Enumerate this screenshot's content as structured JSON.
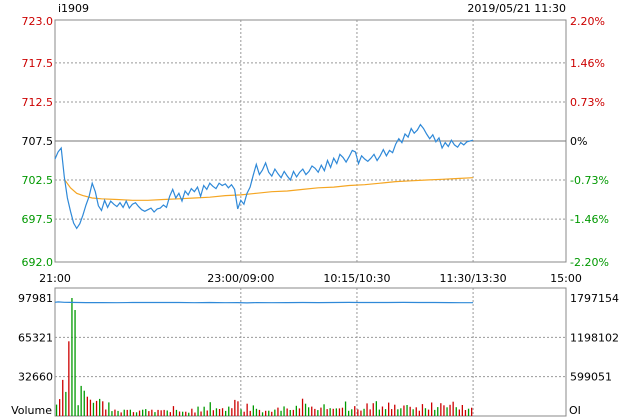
{
  "header": {
    "symbol": "i1909",
    "datetime": "2019/05/21 11:30"
  },
  "colors": {
    "price_line": "#2f89d8",
    "avg_line": "#f5a623",
    "up": "#cc0000",
    "down": "#009900",
    "neutral": "#000000",
    "grid": "#999999",
    "oi_line": "#2f89d8"
  },
  "chart_data": [
    {
      "type": "line",
      "panel": "price",
      "y_ticks_left": [
        "723.0",
        "717.5",
        "712.5",
        "707.5",
        "702.5",
        "697.5",
        "692.0"
      ],
      "y_ticks_right": [
        "2.20%",
        "1.46%",
        "0.73%",
        "0%",
        "-0.73%",
        "-1.46%",
        "-2.20%"
      ],
      "y_values": [
        723.0,
        717.5,
        712.5,
        707.5,
        702.5,
        697.5,
        692.0
      ],
      "ylim": [
        692.0,
        723.0
      ],
      "base_price": 707.5,
      "x_ticks": [
        "21:00",
        "23:00/09:00",
        "10:15/10:30",
        "11:30/13:30",
        "15:00"
      ],
      "xlim": [
        0,
        330
      ],
      "x_tick_positions": [
        0,
        120,
        195,
        270,
        330
      ],
      "last_x": 270,
      "series": [
        {
          "key": "price",
          "points": [
            [
              0,
              705.2
            ],
            [
              2,
              706.1
            ],
            [
              4,
              706.6
            ],
            [
              6,
              702.9
            ],
            [
              8,
              700.2
            ],
            [
              10,
              698.5
            ],
            [
              12,
              697.0
            ],
            [
              14,
              696.3
            ],
            [
              16,
              696.9
            ],
            [
              18,
              698.0
            ],
            [
              20,
              699.3
            ],
            [
              22,
              700.4
            ],
            [
              24,
              702.1
            ],
            [
              26,
              701.0
            ],
            [
              28,
              699.2
            ],
            [
              30,
              698.6
            ],
            [
              32,
              699.9
            ],
            [
              34,
              699.0
            ],
            [
              36,
              699.8
            ],
            [
              38,
              699.4
            ],
            [
              40,
              699.1
            ],
            [
              42,
              699.6
            ],
            [
              44,
              699.0
            ],
            [
              46,
              699.8
            ],
            [
              48,
              698.9
            ],
            [
              50,
              699.4
            ],
            [
              52,
              699.6
            ],
            [
              54,
              699.1
            ],
            [
              56,
              698.7
            ],
            [
              58,
              698.5
            ],
            [
              60,
              698.7
            ],
            [
              62,
              698.9
            ],
            [
              64,
              698.4
            ],
            [
              66,
              698.8
            ],
            [
              68,
              698.9
            ],
            [
              70,
              699.3
            ],
            [
              72,
              699.0
            ],
            [
              74,
              700.4
            ],
            [
              76,
              701.3
            ],
            [
              78,
              700.2
            ],
            [
              80,
              700.8
            ],
            [
              82,
              699.8
            ],
            [
              84,
              701.1
            ],
            [
              86,
              700.6
            ],
            [
              88,
              701.4
            ],
            [
              90,
              701.0
            ],
            [
              92,
              701.6
            ],
            [
              94,
              700.4
            ],
            [
              96,
              701.8
            ],
            [
              98,
              701.3
            ],
            [
              100,
              702.1
            ],
            [
              102,
              701.7
            ],
            [
              104,
              701.4
            ],
            [
              106,
              702.1
            ],
            [
              108,
              701.8
            ],
            [
              110,
              702.0
            ],
            [
              112,
              701.5
            ],
            [
              114,
              701.9
            ],
            [
              116,
              701.3
            ],
            [
              118,
              698.8
            ],
            [
              120,
              699.9
            ],
            [
              122,
              699.4
            ],
            [
              124,
              700.8
            ],
            [
              126,
              701.6
            ],
            [
              128,
              703.1
            ],
            [
              130,
              704.5
            ],
            [
              132,
              703.2
            ],
            [
              134,
              703.8
            ],
            [
              136,
              704.7
            ],
            [
              138,
              703.5
            ],
            [
              140,
              703.0
            ],
            [
              142,
              703.9
            ],
            [
              144,
              703.3
            ],
            [
              146,
              702.8
            ],
            [
              148,
              703.6
            ],
            [
              150,
              703.0
            ],
            [
              152,
              702.5
            ],
            [
              154,
              703.6
            ],
            [
              156,
              702.9
            ],
            [
              158,
              703.5
            ],
            [
              160,
              703.9
            ],
            [
              162,
              703.2
            ],
            [
              164,
              703.6
            ],
            [
              166,
              704.3
            ],
            [
              168,
              704.0
            ],
            [
              170,
              703.5
            ],
            [
              172,
              704.4
            ],
            [
              174,
              703.7
            ],
            [
              176,
              705.0
            ],
            [
              178,
              704.1
            ],
            [
              180,
              705.3
            ],
            [
              182,
              704.6
            ],
            [
              184,
              705.8
            ],
            [
              186,
              705.4
            ],
            [
              188,
              704.8
            ],
            [
              190,
              705.5
            ],
            [
              192,
              706.3
            ],
            [
              194,
              706.1
            ],
            [
              196,
              704.6
            ],
            [
              198,
              705.6
            ],
            [
              200,
              705.2
            ],
            [
              202,
              704.9
            ],
            [
              204,
              705.3
            ],
            [
              206,
              705.8
            ],
            [
              208,
              705.0
            ],
            [
              210,
              705.6
            ],
            [
              212,
              706.4
            ],
            [
              214,
              705.6
            ],
            [
              216,
              706.3
            ],
            [
              218,
              706.0
            ],
            [
              220,
              707.1
            ],
            [
              222,
              707.8
            ],
            [
              224,
              707.3
            ],
            [
              226,
              708.4
            ],
            [
              228,
              708.0
            ],
            [
              230,
              709.1
            ],
            [
              232,
              708.5
            ],
            [
              234,
              708.9
            ],
            [
              236,
              709.6
            ],
            [
              238,
              709.1
            ],
            [
              240,
              708.4
            ],
            [
              242,
              707.8
            ],
            [
              244,
              708.3
            ],
            [
              246,
              707.4
            ],
            [
              248,
              707.9
            ],
            [
              250,
              706.6
            ],
            [
              252,
              707.3
            ],
            [
              254,
              706.8
            ],
            [
              256,
              707.6
            ],
            [
              258,
              707.0
            ],
            [
              260,
              706.7
            ],
            [
              262,
              707.3
            ],
            [
              264,
              707.0
            ],
            [
              266,
              707.4
            ],
            [
              268,
              707.5
            ],
            [
              270,
              707.6
            ]
          ]
        },
        {
          "key": "average",
          "points": [
            [
              6,
              702.6
            ],
            [
              10,
              701.5
            ],
            [
              14,
              700.8
            ],
            [
              18,
              700.5
            ],
            [
              24,
              700.2
            ],
            [
              30,
              700.1
            ],
            [
              40,
              700.0
            ],
            [
              50,
              699.9
            ],
            [
              60,
              699.9
            ],
            [
              70,
              700.0
            ],
            [
              80,
              700.1
            ],
            [
              90,
              700.2
            ],
            [
              100,
              700.3
            ],
            [
              110,
              700.5
            ],
            [
              120,
              700.6
            ],
            [
              130,
              700.8
            ],
            [
              140,
              701.0
            ],
            [
              150,
              701.1
            ],
            [
              160,
              701.3
            ],
            [
              170,
              701.5
            ],
            [
              180,
              701.6
            ],
            [
              190,
              701.8
            ],
            [
              200,
              701.9
            ],
            [
              210,
              702.1
            ],
            [
              220,
              702.3
            ],
            [
              230,
              702.4
            ],
            [
              240,
              702.5
            ],
            [
              250,
              702.6
            ],
            [
              260,
              702.7
            ],
            [
              270,
              702.8
            ]
          ]
        }
      ]
    },
    {
      "type": "bar",
      "panel": "volume",
      "y_ticks_left": [
        "97981",
        "65321",
        "32660"
      ],
      "y_ticks_right": [
        "1797154",
        "1198102",
        "599051"
      ],
      "left_label": "Volume",
      "right_label": "OI",
      "ylim": [
        0,
        97981
      ],
      "oi_ylim": [
        0,
        1797154
      ],
      "xlim": [
        0,
        330
      ],
      "volume": [
        9500,
        14000,
        30000,
        20000,
        62000,
        98000,
        88000,
        9000,
        25000,
        21000,
        16000,
        13500,
        11000,
        12500,
        14200,
        12200,
        5400,
        11300,
        4100,
        5300,
        4200,
        3000,
        5200,
        5100,
        5200,
        3200,
        3100,
        4500,
        5200,
        5700,
        4100,
        5200,
        3200,
        5100,
        4700,
        5100,
        4600,
        3200,
        8200,
        5100,
        3700,
        3600,
        3600,
        2700,
        6100,
        2900,
        7800,
        3700,
        7700,
        4600,
        11500,
        4800,
        6400,
        5800,
        6500,
        4200,
        7800,
        6500,
        13400,
        12200,
        5600,
        3600,
        10200,
        4200,
        8800,
        6000,
        5100,
        3100,
        4300,
        4400,
        3500,
        5300,
        7000,
        4300,
        8000,
        6200,
        5000,
        5100,
        8500,
        6300,
        14400,
        10200,
        7200,
        7800,
        5900,
        4900,
        7000,
        9700,
        5700,
        6500,
        6000,
        6300,
        6300,
        6900,
        12000,
        4300,
        5600,
        8200,
        5500,
        4500,
        6000,
        10500,
        5500,
        10600,
        12300,
        5300,
        7900,
        5700,
        11100,
        5700,
        9400,
        5600,
        6400,
        8700,
        9100,
        7600,
        5600,
        7200,
        4400,
        9900,
        6500,
        5300,
        11200,
        5100,
        7400,
        10600,
        8900,
        7200,
        9300,
        11900,
        7300,
        5400,
        9100,
        5000,
        6100,
        6900
      ],
      "volume_dir": [
        -1,
        1,
        1,
        -1,
        1,
        -1,
        -1,
        -1,
        -1,
        -1,
        1,
        1,
        -1,
        1,
        -1,
        1,
        1,
        -1,
        -1,
        1,
        -1,
        1,
        -1,
        1,
        -1,
        1,
        -1,
        1,
        -1,
        -1,
        1,
        1,
        -1,
        1,
        1,
        1,
        -1,
        1,
        1,
        -1,
        1,
        -1,
        1,
        -1,
        1,
        1,
        -1,
        1,
        -1,
        1,
        -1,
        1,
        -1,
        1,
        1,
        -1,
        -1,
        1,
        1,
        1,
        -1,
        1,
        1,
        1,
        -1,
        -1,
        1,
        -1,
        1,
        -1,
        1,
        -1,
        1,
        -1,
        -1,
        1,
        -1,
        1,
        -1,
        1,
        1,
        -1,
        -1,
        1,
        1,
        -1,
        1,
        -1,
        1,
        -1,
        1,
        -1,
        1,
        1,
        -1,
        -1,
        -1,
        1,
        1,
        1,
        -1,
        1,
        1,
        1,
        -1,
        -1,
        1,
        -1,
        1,
        1,
        1,
        -1,
        -1,
        1,
        -1,
        1,
        -1,
        1,
        1,
        1,
        -1,
        1,
        1,
        -1,
        -1,
        1,
        1,
        -1,
        1,
        1,
        -1,
        1,
        1,
        1,
        -1,
        1
      ],
      "open_interest_points": [
        [
          0,
          1732000
        ],
        [
          2,
          1738000
        ],
        [
          6,
          1732000
        ],
        [
          10,
          1730000
        ],
        [
          20,
          1727000
        ],
        [
          30,
          1727000
        ],
        [
          40,
          1726000
        ],
        [
          50,
          1728000
        ],
        [
          60,
          1729000
        ],
        [
          70,
          1728000
        ],
        [
          80,
          1729000
        ],
        [
          90,
          1726000
        ],
        [
          100,
          1728000
        ],
        [
          110,
          1725000
        ],
        [
          118,
          1727000
        ],
        [
          124,
          1722000
        ],
        [
          130,
          1727000
        ],
        [
          140,
          1726000
        ],
        [
          150,
          1727000
        ],
        [
          160,
          1728000
        ],
        [
          170,
          1727000
        ],
        [
          180,
          1728000
        ],
        [
          190,
          1730000
        ],
        [
          196,
          1728000
        ],
        [
          205,
          1728000
        ],
        [
          215,
          1729000
        ],
        [
          225,
          1730000
        ],
        [
          235,
          1729000
        ],
        [
          245,
          1728000
        ],
        [
          255,
          1727000
        ],
        [
          262,
          1726000
        ],
        [
          270,
          1726000
        ]
      ]
    }
  ]
}
